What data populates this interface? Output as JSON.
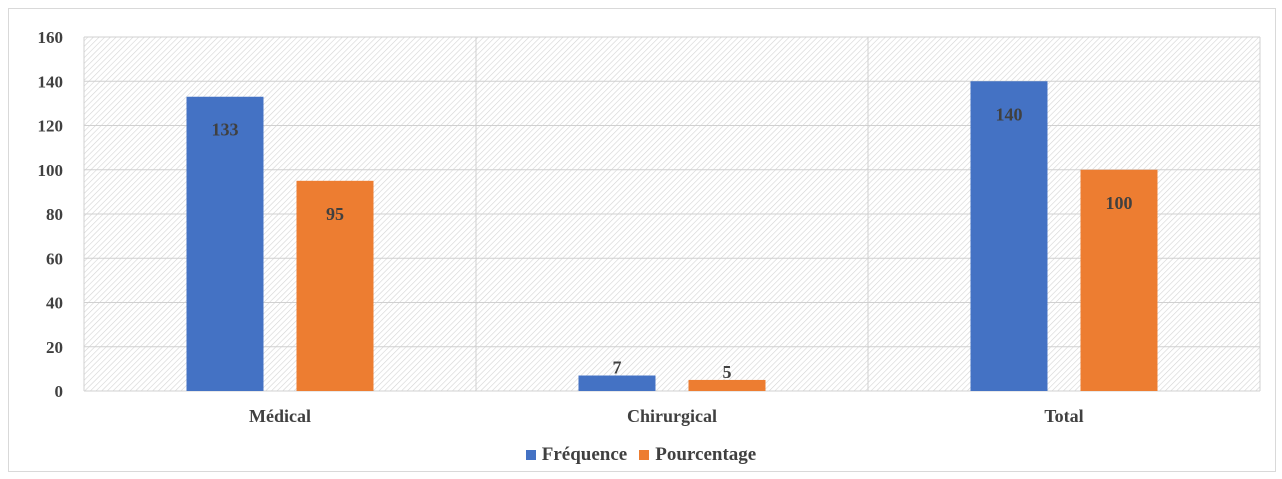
{
  "chart_data": {
    "type": "bar",
    "categories": [
      "Médical",
      "Chirurgical",
      "Total"
    ],
    "series": [
      {
        "name": "Fréquence",
        "values": [
          133,
          7,
          140
        ],
        "color": "#4472C4"
      },
      {
        "name": "Pourcentage",
        "values": [
          95,
          5,
          100
        ],
        "color": "#ED7D31"
      }
    ],
    "ylim": [
      0,
      160
    ],
    "yticks": [
      0,
      20,
      40,
      60,
      80,
      100,
      120,
      140,
      160
    ],
    "title": "",
    "xlabel": "",
    "ylabel": "",
    "grid": true,
    "legend_position": "bottom"
  }
}
